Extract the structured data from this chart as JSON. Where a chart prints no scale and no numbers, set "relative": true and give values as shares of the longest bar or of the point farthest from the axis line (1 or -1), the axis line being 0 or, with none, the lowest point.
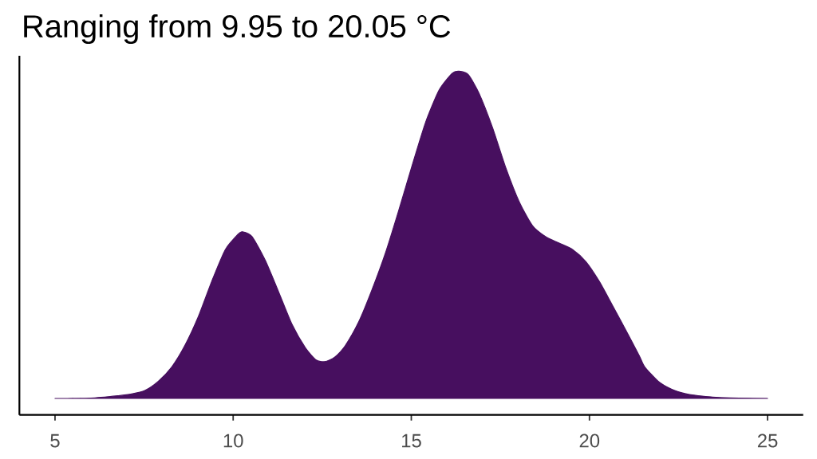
{
  "chart_data": {
    "type": "area",
    "title": "Ranging from 9.95 to 20.05 °C",
    "x": [
      5,
      6,
      6.78,
      7.15,
      7.52,
      7.9,
      8.28,
      8.65,
      9.03,
      9.4,
      9.78,
      10.15,
      10.26,
      10.53,
      10.9,
      11.28,
      11.65,
      12.03,
      12.33,
      12.57,
      12.85,
      13.15,
      13.53,
      13.9,
      14.28,
      14.65,
      15.03,
      15.4,
      15.78,
      16.15,
      16.34,
      16.6,
      16.9,
      17.28,
      17.65,
      18.03,
      18.4,
      18.78,
      19.15,
      19.53,
      19.9,
      20.28,
      20.65,
      21.03,
      21.4,
      21.55,
      21.93,
      22.3,
      22.68,
      23.05,
      23.8,
      25
    ],
    "values": [
      0.048,
      0.049,
      0.056,
      0.061,
      0.071,
      0.098,
      0.14,
      0.203,
      0.288,
      0.389,
      0.481,
      0.527,
      0.533,
      0.519,
      0.45,
      0.357,
      0.264,
      0.195,
      0.16,
      0.155,
      0.168,
      0.202,
      0.272,
      0.365,
      0.473,
      0.596,
      0.728,
      0.851,
      0.945,
      0.994,
      1.0,
      0.99,
      0.936,
      0.836,
      0.72,
      0.62,
      0.551,
      0.518,
      0.5,
      0.481,
      0.446,
      0.388,
      0.318,
      0.245,
      0.172,
      0.14,
      0.098,
      0.075,
      0.062,
      0.056,
      0.05,
      0.048
    ],
    "color": "#470f5f",
    "relative": true,
    "xlim": [
      4,
      26
    ],
    "xticks": [
      5,
      10,
      15,
      20,
      25
    ]
  }
}
